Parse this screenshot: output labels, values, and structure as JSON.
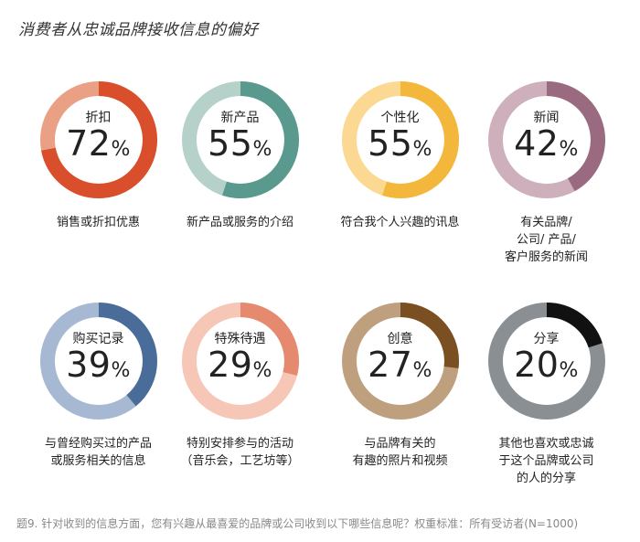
{
  "title": "消费者从忠诚品牌接收信息的偏好",
  "footnote": "题9. 针对收到的信息方面，您有兴趣从最喜爱的品牌或公司收到以下哪些信息呢？权重标准：所有受访者(N=1000)",
  "chart_data": {
    "type": "pie",
    "items": [
      {
        "label": "折扣",
        "value": 72,
        "display": "72",
        "unit": "%",
        "caption": "销售或折扣优惠",
        "color": "#d94f2b",
        "track": "#eaa084"
      },
      {
        "label": "新产品",
        "value": 55,
        "display": "55",
        "unit": "%",
        "caption": "新产品或服务的介绍",
        "color": "#5a9a8e",
        "track": "#b6d0ca"
      },
      {
        "label": "个性化",
        "value": 55,
        "display": "55",
        "unit": "%",
        "caption": "符合我个人兴趣的讯息",
        "color": "#f3b73b",
        "track": "#fbd992"
      },
      {
        "label": "新闻",
        "value": 42,
        "display": "42",
        "unit": "%",
        "caption": "有关品牌/\n公司/ 产品/\n客户服务的新闻",
        "color": "#9a6b80",
        "track": "#ceb0bd"
      },
      {
        "label": "购买记录",
        "value": 39,
        "display": "39",
        "unit": "%",
        "caption": "与曾经购买过的产品\n或服务相关的信息",
        "color": "#4a6c99",
        "track": "#a7b8d2"
      },
      {
        "label": "特殊待遇",
        "value": 29,
        "display": "29",
        "unit": "%",
        "caption": "特别安排参与的活动\n（音乐会，工艺坊等）",
        "color": "#e58a6f",
        "track": "#f6c6b6"
      },
      {
        "label": "创意",
        "value": 27,
        "display": "27",
        "unit": "%",
        "caption": "与品牌有关的\n有趣的照片和视频",
        "color": "#7a4f22",
        "track": "#bea07f"
      },
      {
        "label": "分享",
        "value": 20,
        "display": "20",
        "unit": "%",
        "caption": "其他也喜欢或忠诚\n于这个品牌或公司\n的人的分享",
        "color": "#111111",
        "track": "#8a8f93"
      }
    ]
  }
}
